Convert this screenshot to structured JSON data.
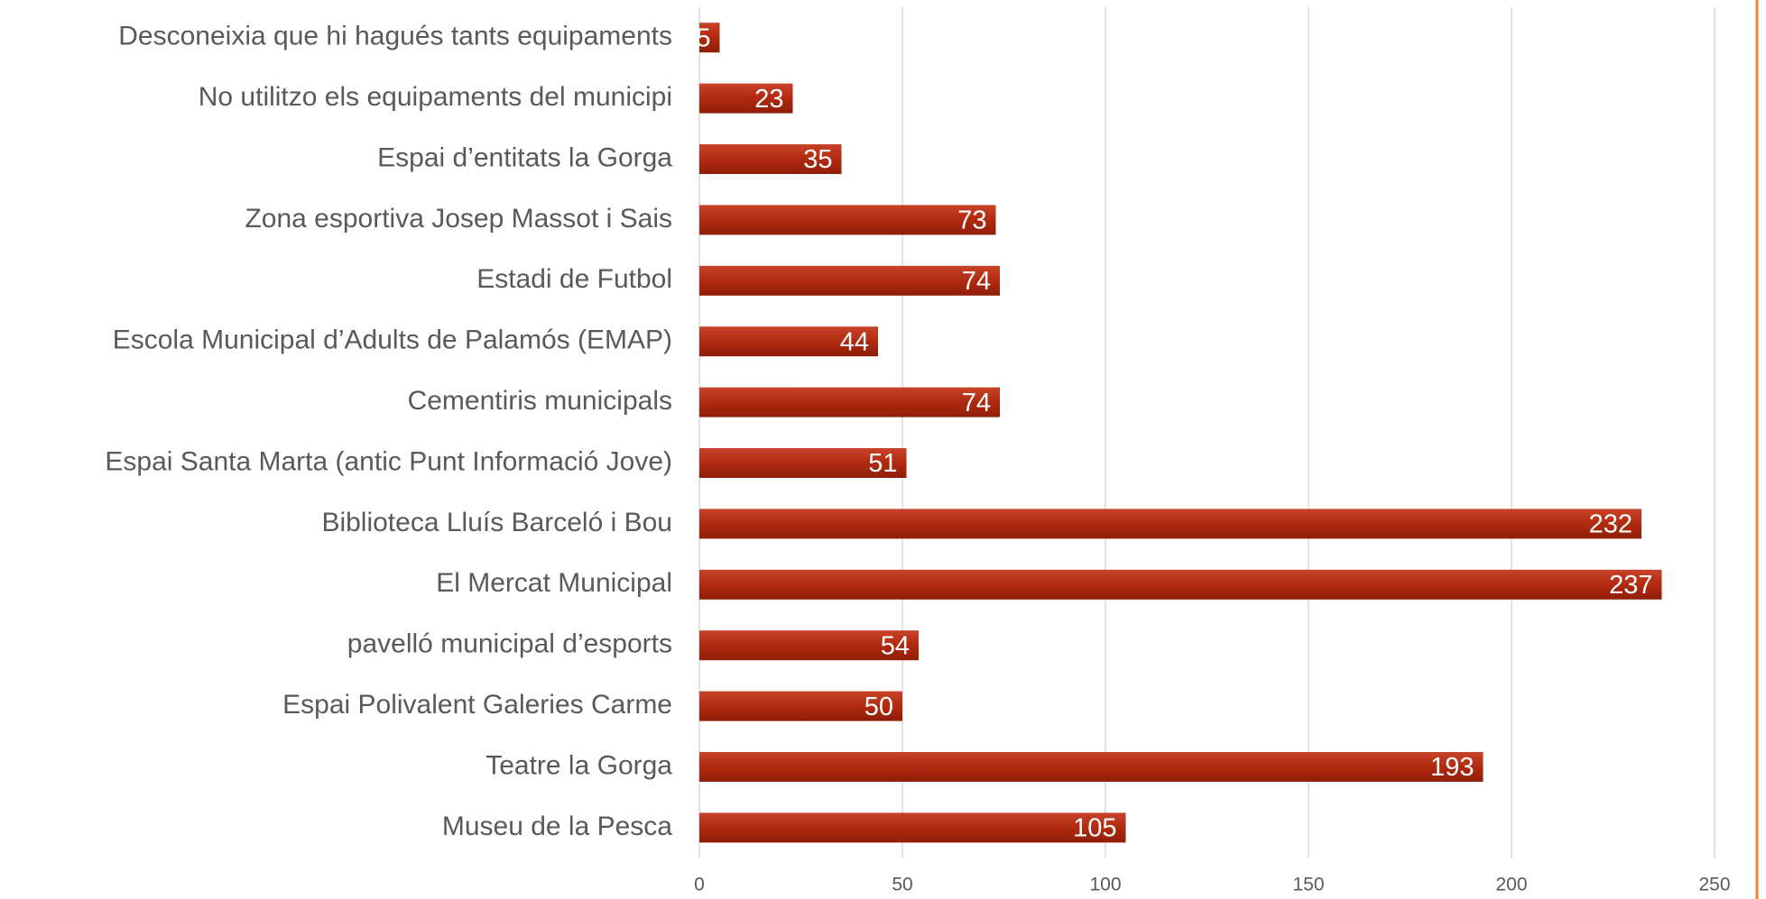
{
  "chart_data": {
    "type": "bar",
    "orientation": "horizontal",
    "categories": [
      "Desconeixia que hi hagués tants equipaments",
      "No utilitzo els equipaments del municipi",
      "Espai d’entitats la Gorga",
      "Zona esportiva Josep Massot i Sais",
      "Estadi de Futbol",
      "Escola Municipal d’Adults de Palamós (EMAP)",
      "Cementiris municipals",
      "Espai Santa Marta (antic Punt Informació Jove)",
      "Biblioteca Lluís Barceló i Bou",
      "El Mercat Municipal",
      "pavelló municipal d’esports",
      "Espai Polivalent Galeries Carme",
      "Teatre la Gorga",
      "Museu de la Pesca"
    ],
    "values": [
      5,
      23,
      35,
      73,
      74,
      44,
      74,
      51,
      232,
      237,
      54,
      50,
      193,
      105
    ],
    "color": "#b02a10",
    "xlim": [
      0,
      250
    ],
    "xticks": [
      0,
      50,
      100,
      150,
      200,
      250
    ],
    "grid": true
  }
}
